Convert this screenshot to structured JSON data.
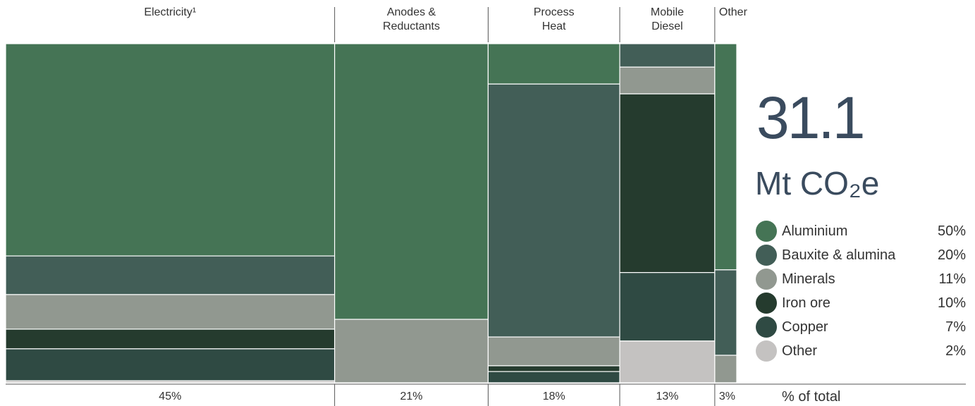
{
  "chart_data": {
    "type": "marimekko",
    "categories": [
      "Electricity¹",
      "Anodes &\nReductants",
      "Process\nHeat",
      "Mobile\nDiesel",
      "Other"
    ],
    "category_shares": [
      45,
      21,
      18,
      13,
      3
    ],
    "category_share_labels": [
      "45%",
      "21%",
      "18%",
      "13%",
      "3%"
    ],
    "axis_label": "% of total",
    "total": "31.1",
    "unit": "Mt CO₂e",
    "series": [
      {
        "name": "Aluminium",
        "color": "#457455",
        "share": 50,
        "share_label": "50%",
        "values": [
          62.6,
          81.3,
          11.9,
          null,
          66.7
        ]
      },
      {
        "name": "Bauxite & alumina",
        "color": "#425e57",
        "share": 20,
        "share_label": "20%",
        "values": [
          11.4,
          null,
          74.6,
          6.9,
          25.2
        ]
      },
      {
        "name": "Minerals",
        "color": "#919890",
        "share": 11,
        "share_label": "11%",
        "values": [
          10.2,
          18.7,
          8.5,
          7.9,
          8.1
        ]
      },
      {
        "name": "Iron ore",
        "color": "#253b2e",
        "share": 10,
        "share_label": "10%",
        "values": [
          5.8,
          null,
          1.7,
          52.7,
          null
        ]
      },
      {
        "name": "Copper",
        "color": "#2f4a43",
        "share": 7,
        "share_label": "7%",
        "values": [
          9.4,
          null,
          3.3,
          20.2,
          null
        ]
      },
      {
        "name": "Other",
        "color": "#c4c2c1",
        "share": 2,
        "share_label": "2%",
        "values": [
          0.6,
          null,
          null,
          12.3,
          null
        ]
      }
    ]
  }
}
